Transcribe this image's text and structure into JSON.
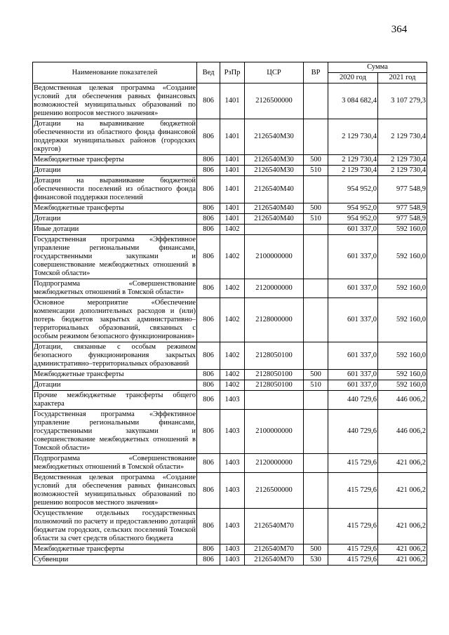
{
  "page": {
    "number": "364"
  },
  "table": {
    "header": {
      "name": "Наименование показателей",
      "ved": "Вед",
      "rzpr": "РзПр",
      "csr": "ЦСР",
      "vr": "ВР",
      "summa": "Сумма",
      "year2020": "2020 год",
      "year2021": "2021 год"
    },
    "rows": [
      {
        "name": "Ведомственная целевая программа «Создание условий для обеспечения равных финансовых возможностей муниципальных образований по решению вопросов местного значения»",
        "ved": "806",
        "rzpr": "1401",
        "csr": "2126500000",
        "vr": "",
        "y2020": "3 084 682,4",
        "y2021": "3 107 279,3"
      },
      {
        "name": "Дотации на выравнивание бюджетной обеспеченности из областного фонда финансовой поддержки муниципальных районов (городских округов)",
        "ved": "806",
        "rzpr": "1401",
        "csr": "2126540M30",
        "vr": "",
        "y2020": "2 129 730,4",
        "y2021": "2 129 730,4"
      },
      {
        "name": "Межбюджетные трансферты",
        "ved": "806",
        "rzpr": "1401",
        "csr": "2126540M30",
        "vr": "500",
        "y2020": "2 129 730,4",
        "y2021": "2 129 730,4"
      },
      {
        "name": "Дотации",
        "ved": "806",
        "rzpr": "1401",
        "csr": "2126540M30",
        "vr": "510",
        "y2020": "2 129 730,4",
        "y2021": "2 129 730,4"
      },
      {
        "name": "Дотации на выравнивание бюджетной обеспеченности поселений из областного фонда финансовой поддержки поселений",
        "ved": "806",
        "rzpr": "1401",
        "csr": "2126540M40",
        "vr": "",
        "y2020": "954 952,0",
        "y2021": "977 548,9"
      },
      {
        "name": "Межбюджетные трансферты",
        "ved": "806",
        "rzpr": "1401",
        "csr": "2126540M40",
        "vr": "500",
        "y2020": "954 952,0",
        "y2021": "977 548,9"
      },
      {
        "name": "Дотации",
        "ved": "806",
        "rzpr": "1401",
        "csr": "2126540M40",
        "vr": "510",
        "y2020": "954 952,0",
        "y2021": "977 548,9"
      },
      {
        "name": "Иные дотации",
        "ved": "806",
        "rzpr": "1402",
        "csr": "",
        "vr": "",
        "y2020": "601 337,0",
        "y2021": "592 160,0"
      },
      {
        "name": "Государственная программа «Эффективное управление региональными финансами, государственными закупками и совершенствование межбюджетных отношений в Томской области»",
        "ved": "806",
        "rzpr": "1402",
        "csr": "2100000000",
        "vr": "",
        "y2020": "601 337,0",
        "y2021": "592 160,0"
      },
      {
        "name": "Подпрограмма «Совершенствование межбюджетных отношений в Томской области»",
        "ved": "806",
        "rzpr": "1402",
        "csr": "2120000000",
        "vr": "",
        "y2020": "601 337,0",
        "y2021": "592 160,0"
      },
      {
        "name": "Основное мероприятие «Обеспечение компенсации дополнительных расходов и (или) потерь бюджетов закрытых административно–территориальных образований, связанных с особым режимом безопасного функционирования»",
        "ved": "806",
        "rzpr": "1402",
        "csr": "2128000000",
        "vr": "",
        "y2020": "601 337,0",
        "y2021": "592 160,0"
      },
      {
        "name": "Дотации, связанные с особым режимом безопасного функционирования закрытых административно–территориальных образований",
        "ved": "806",
        "rzpr": "1402",
        "csr": "2128050100",
        "vr": "",
        "y2020": "601 337,0",
        "y2021": "592 160,0"
      },
      {
        "name": "Межбюджетные трансферты",
        "ved": "806",
        "rzpr": "1402",
        "csr": "2128050100",
        "vr": "500",
        "y2020": "601 337,0",
        "y2021": "592 160,0"
      },
      {
        "name": "Дотации",
        "ved": "806",
        "rzpr": "1402",
        "csr": "2128050100",
        "vr": "510",
        "y2020": "601 337,0",
        "y2021": "592 160,0"
      },
      {
        "name": "Прочие межбюджетные трансферты общего характера",
        "ved": "806",
        "rzpr": "1403",
        "csr": "",
        "vr": "",
        "y2020": "440 729,6",
        "y2021": "446 006,2"
      },
      {
        "name": "Государственная программа «Эффективное управление региональными финансами, государственными закупками и совершенствование межбюджетных отношений в Томской области»",
        "ved": "806",
        "rzpr": "1403",
        "csr": "2100000000",
        "vr": "",
        "y2020": "440 729,6",
        "y2021": "446 006,2"
      },
      {
        "name": "Подпрограмма «Совершенствование межбюджетных отношений в Томской области»",
        "ved": "806",
        "rzpr": "1403",
        "csr": "2120000000",
        "vr": "",
        "y2020": "415 729,6",
        "y2021": "421 006,2"
      },
      {
        "name": "Ведомственная целевая программа «Создание условий для обеспечения равных финансовых возможностей муниципальных образований по решению вопросов местного значения»",
        "ved": "806",
        "rzpr": "1403",
        "csr": "2126500000",
        "vr": "",
        "y2020": "415 729,6",
        "y2021": "421 006,2"
      },
      {
        "name": "Осуществление отдельных государственных полномочий по расчету и предоставлению дотаций бюджетам городских, сельских поселений Томской области за счет средств областного бюджета",
        "ved": "806",
        "rzpr": "1403",
        "csr": "2126540M70",
        "vr": "",
        "y2020": "415 729,6",
        "y2021": "421 006,2"
      },
      {
        "name": "Межбюджетные трансферты",
        "ved": "806",
        "rzpr": "1403",
        "csr": "2126540M70",
        "vr": "500",
        "y2020": "415 729,6",
        "y2021": "421 006,2"
      },
      {
        "name": "Субвенции",
        "ved": "806",
        "rzpr": "1403",
        "csr": "2126540M70",
        "vr": "530",
        "y2020": "415 729,6",
        "y2021": "421 006,2"
      }
    ]
  }
}
